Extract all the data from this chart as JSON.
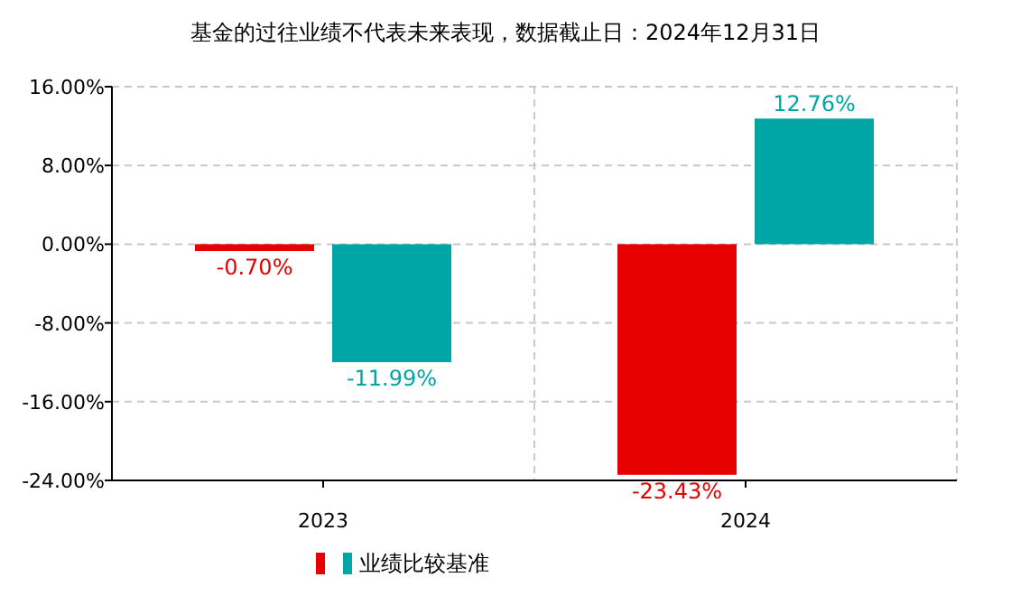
{
  "chart_data": {
    "type": "bar",
    "title": "基金的过往业绩不代表未来表现，数据截止日：2024年12月31日",
    "categories": [
      "2023",
      "2024"
    ],
    "series": [
      {
        "color": "#e60000",
        "values": [
          -0.7,
          -23.43
        ],
        "value_labels": [
          "-0.70%",
          "-23.43%"
        ]
      },
      {
        "name": "业绩比较基准",
        "color": "#00a6a6",
        "values": [
          -11.99,
          12.76
        ],
        "value_labels": [
          "-11.99%",
          "12.76%"
        ]
      }
    ],
    "ylim": [
      -24,
      16
    ],
    "yticks": [
      {
        "value": -24,
        "label": "-24.00%"
      },
      {
        "value": -16,
        "label": "-16.00%"
      },
      {
        "value": -8,
        "label": "-8.00%"
      },
      {
        "value": 0,
        "label": "0.00%"
      },
      {
        "value": 8,
        "label": "8.00%"
      },
      {
        "value": 16,
        "label": "16.00%"
      }
    ],
    "grid": true,
    "legend": "bottom"
  }
}
